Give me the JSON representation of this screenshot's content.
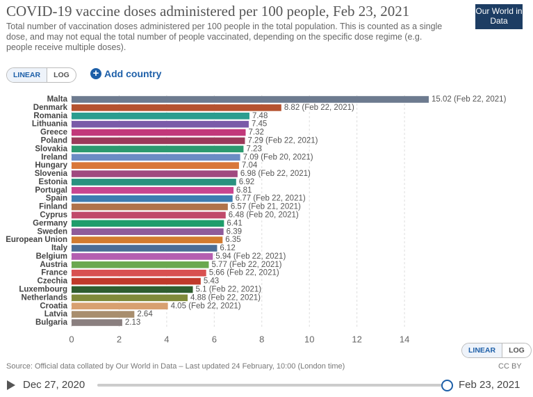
{
  "header": {
    "title": "COVID-19 vaccine doses administered per 100 people, Feb 23, 2021",
    "subtitle": "Total number of vaccination doses administered per 100 people in the total population. This is counted as a single dose, and may not equal the total number of people vaccinated, depending on the specific dose regime (e.g. people receive multiple doses).",
    "logo": "Our World in Data"
  },
  "controls": {
    "scale_options": [
      "LINEAR",
      "LOG"
    ],
    "add_country": "Add country"
  },
  "chart_data": {
    "type": "bar",
    "orientation": "horizontal",
    "categories": [
      "Malta",
      "Denmark",
      "Romania",
      "Lithuania",
      "Greece",
      "Poland",
      "Slovakia",
      "Ireland",
      "Hungary",
      "Slovenia",
      "Estonia",
      "Portugal",
      "Spain",
      "Finland",
      "Cyprus",
      "Germany",
      "Sweden",
      "European Union",
      "Italy",
      "Belgium",
      "Austria",
      "France",
      "Czechia",
      "Luxembourg",
      "Netherlands",
      "Croatia",
      "Latvia",
      "Bulgaria"
    ],
    "values": [
      15.02,
      8.82,
      7.48,
      7.45,
      7.32,
      7.29,
      7.23,
      7.09,
      7.04,
      6.98,
      6.92,
      6.81,
      6.77,
      6.57,
      6.48,
      6.41,
      6.39,
      6.35,
      6.12,
      5.94,
      5.77,
      5.66,
      5.43,
      5.1,
      4.88,
      4.05,
      2.64,
      2.13
    ],
    "value_labels": [
      "15.02 (Feb 22, 2021)",
      "8.82 (Feb 22, 2021)",
      "7.48",
      "7.45",
      "7.32",
      "7.29 (Feb 22, 2021)",
      "7.23",
      "7.09 (Feb 20, 2021)",
      "7.04",
      "6.98 (Feb 22, 2021)",
      "6.92",
      "6.81",
      "6.77 (Feb 22, 2021)",
      "6.57 (Feb 21, 2021)",
      "6.48 (Feb 20, 2021)",
      "6.41",
      "6.39",
      "6.35",
      "6.12",
      "5.94 (Feb 22, 2021)",
      "5.77 (Feb 22, 2021)",
      "5.66 (Feb 22, 2021)",
      "5.43",
      "5.1 (Feb 22, 2021)",
      "4.88 (Feb 22, 2021)",
      "4.05 (Feb 22, 2021)",
      "2.64",
      "2.13"
    ],
    "colors": [
      "#6d7b8f",
      "#b5522f",
      "#2a9d8f",
      "#7a5ba8",
      "#c2387a",
      "#9b3a5a",
      "#2c9a6f",
      "#6b8cc4",
      "#d9773a",
      "#a04a80",
      "#29917f",
      "#c9458f",
      "#3e7cb1",
      "#b0734a",
      "#c04a6a",
      "#1f9d6b",
      "#8f5b9a",
      "#d27b2f",
      "#4b6d96",
      "#b45fb0",
      "#6aa84f",
      "#d85050",
      "#c0392b",
      "#2f5d2f",
      "#7f8a3a",
      "#d8a070",
      "#a88e6e",
      "#8a7f7f"
    ],
    "xlim": [
      0,
      15.02
    ],
    "xticks": [
      0,
      2,
      4,
      6,
      8,
      10,
      12,
      14
    ],
    "grid": true
  },
  "footer": {
    "source": "Source: Official data collated by Our World in Data – Last updated 24 February, 10:00 (London time)",
    "license": "CC BY",
    "timeline_start": "Dec 27, 2020",
    "timeline_end": "Feb 23, 2021"
  }
}
